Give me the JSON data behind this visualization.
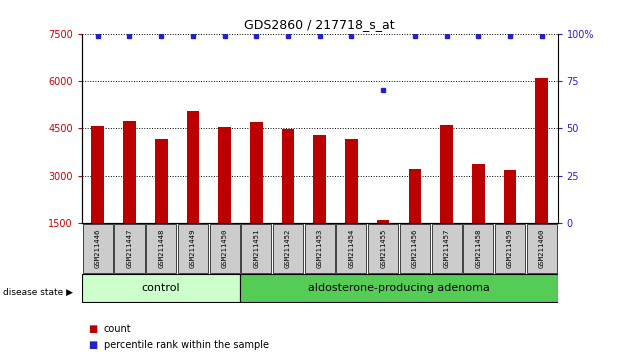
{
  "title": "GDS2860 / 217718_s_at",
  "samples": [
    "GSM211446",
    "GSM211447",
    "GSM211448",
    "GSM211449",
    "GSM211450",
    "GSM211451",
    "GSM211452",
    "GSM211453",
    "GSM211454",
    "GSM211455",
    "GSM211456",
    "GSM211457",
    "GSM211458",
    "GSM211459",
    "GSM211460"
  ],
  "counts": [
    4580,
    4720,
    4150,
    5050,
    4550,
    4700,
    4480,
    4300,
    4150,
    1580,
    3200,
    4600,
    3380,
    3180,
    6100
  ],
  "percentiles": [
    99,
    99,
    99,
    99,
    99,
    99,
    99,
    99,
    99,
    70,
    99,
    99,
    99,
    99,
    99
  ],
  "n_control": 5,
  "n_adenoma": 10,
  "bar_color": "#bb0000",
  "percentile_color": "#2222cc",
  "control_bg": "#ccffcc",
  "adenoma_bg": "#55cc55",
  "sample_bg": "#cccccc",
  "ylim_left": [
    1500,
    7500
  ],
  "yticks_left": [
    1500,
    3000,
    4500,
    6000,
    7500
  ],
  "ylim_right": [
    0,
    100
  ],
  "yticks_right": [
    0,
    25,
    50,
    75,
    100
  ],
  "legend_count_label": "count",
  "legend_pct_label": "percentile rank within the sample",
  "disease_state_label": "disease state",
  "control_label": "control",
  "adenoma_label": "aldosterone-producing adenoma",
  "bar_bottom": 1500
}
